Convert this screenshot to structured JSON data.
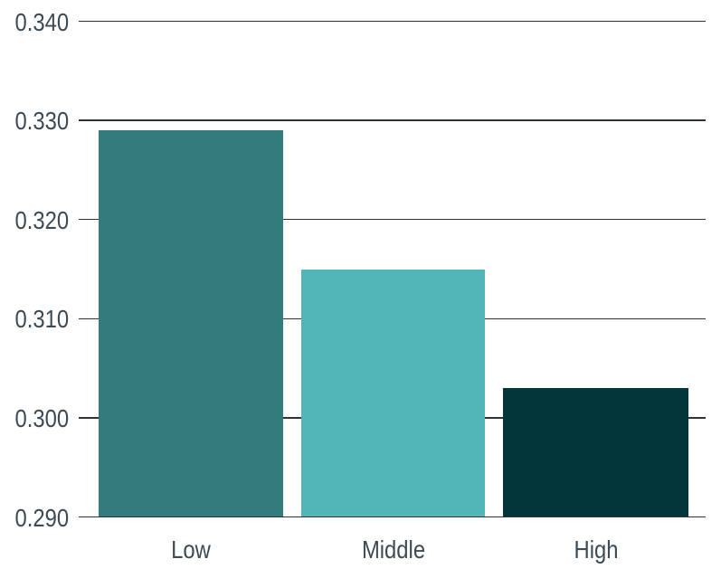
{
  "chart_data": {
    "type": "bar",
    "categories": [
      "Low",
      "Middle",
      "High"
    ],
    "values": [
      0.329,
      0.315,
      0.303
    ],
    "title": "",
    "xlabel": "",
    "ylabel": "",
    "ylim": [
      0.29,
      0.34
    ],
    "ytick_step": 0.01,
    "ytick_labels": [
      "0.290",
      "0.300",
      "0.310",
      "0.320",
      "0.330",
      "0.340"
    ],
    "grid": true,
    "legend": false,
    "bar_colors": [
      "#337B7C",
      "#52B6B9",
      "#03363A"
    ],
    "gridline_color": "#2E3335",
    "label_color": "#3D4A54",
    "background": "#FFFFFF"
  }
}
